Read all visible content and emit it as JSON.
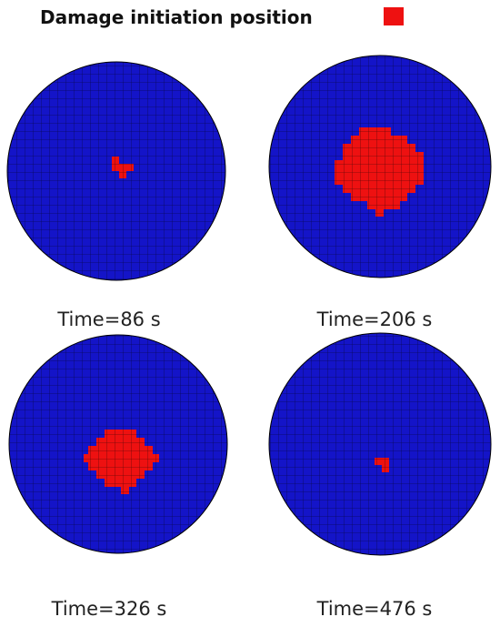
{
  "legend": {
    "label": "Damage initiation position"
  },
  "panels": [
    {
      "caption": "Time=86 s"
    },
    {
      "caption": "Time=206 s"
    },
    {
      "caption": "Time=326 s"
    },
    {
      "caption": "Time=476 s"
    }
  ]
}
